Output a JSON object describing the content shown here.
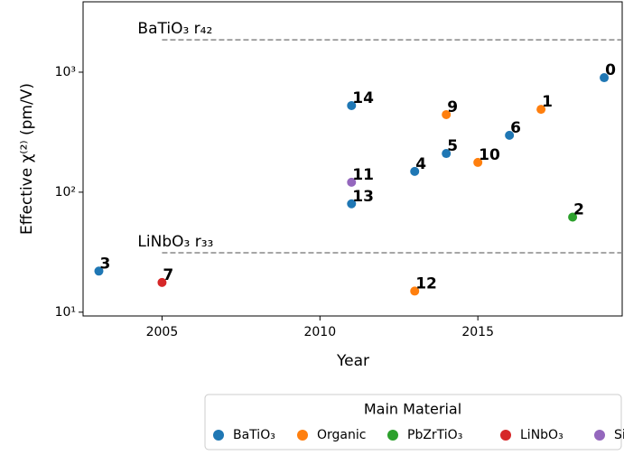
{
  "chart_data": {
    "type": "scatter",
    "x_label": "Year",
    "y_label": "Effective χ⁽²⁾ (pm/V)",
    "xlim": [
      2002.5,
      2019.57
    ],
    "ylim": [
      9.3,
      3860
    ],
    "y_scale": "log",
    "xticks": [
      2005,
      2010,
      2015
    ],
    "yticks": [
      {
        "value": 10,
        "label": "10¹"
      },
      {
        "value": 100,
        "label": "10²"
      },
      {
        "value": 1000,
        "label": "10³"
      }
    ],
    "reference_lines": [
      {
        "label": "BaTiO₃ r₄₂",
        "value": 1860,
        "x_start": 2005,
        "color": "#888888"
      },
      {
        "label": "LiNbO₃ r₃₃",
        "value": 31.3,
        "x_start": 2005,
        "color": "#888888"
      }
    ],
    "legend_title": "Main Material",
    "legend_position": "below",
    "series": [
      {
        "name": "BaTiO₃",
        "color": "#1f77b4",
        "x": [
          2019,
          2003,
          2013,
          2014,
          2016,
          2011,
          2011
        ],
        "values": [
          900,
          22,
          149,
          210,
          298,
          80,
          527
        ],
        "labels": [
          "0",
          "3",
          "4",
          "5",
          "6",
          "13",
          "14"
        ]
      },
      {
        "name": "Organic",
        "color": "#ff7f0e",
        "x": [
          2017,
          2014,
          2015,
          2013
        ],
        "values": [
          490,
          443,
          177,
          15
        ],
        "labels": [
          "1",
          "9",
          "10",
          "12"
        ]
      },
      {
        "name": "PbZrTiO₃",
        "color": "#2ca02c",
        "x": [
          2018
        ],
        "values": [
          62
        ],
        "labels": [
          "2"
        ]
      },
      {
        "name": "LiNbO₃",
        "color": "#d62728",
        "x": [
          2005
        ],
        "values": [
          17.7
        ],
        "labels": [
          "7"
        ]
      },
      {
        "name": "SiN",
        "color": "#9467bd",
        "x": [
          2011
        ],
        "values": [
          121
        ],
        "labels": [
          "11"
        ]
      }
    ]
  }
}
